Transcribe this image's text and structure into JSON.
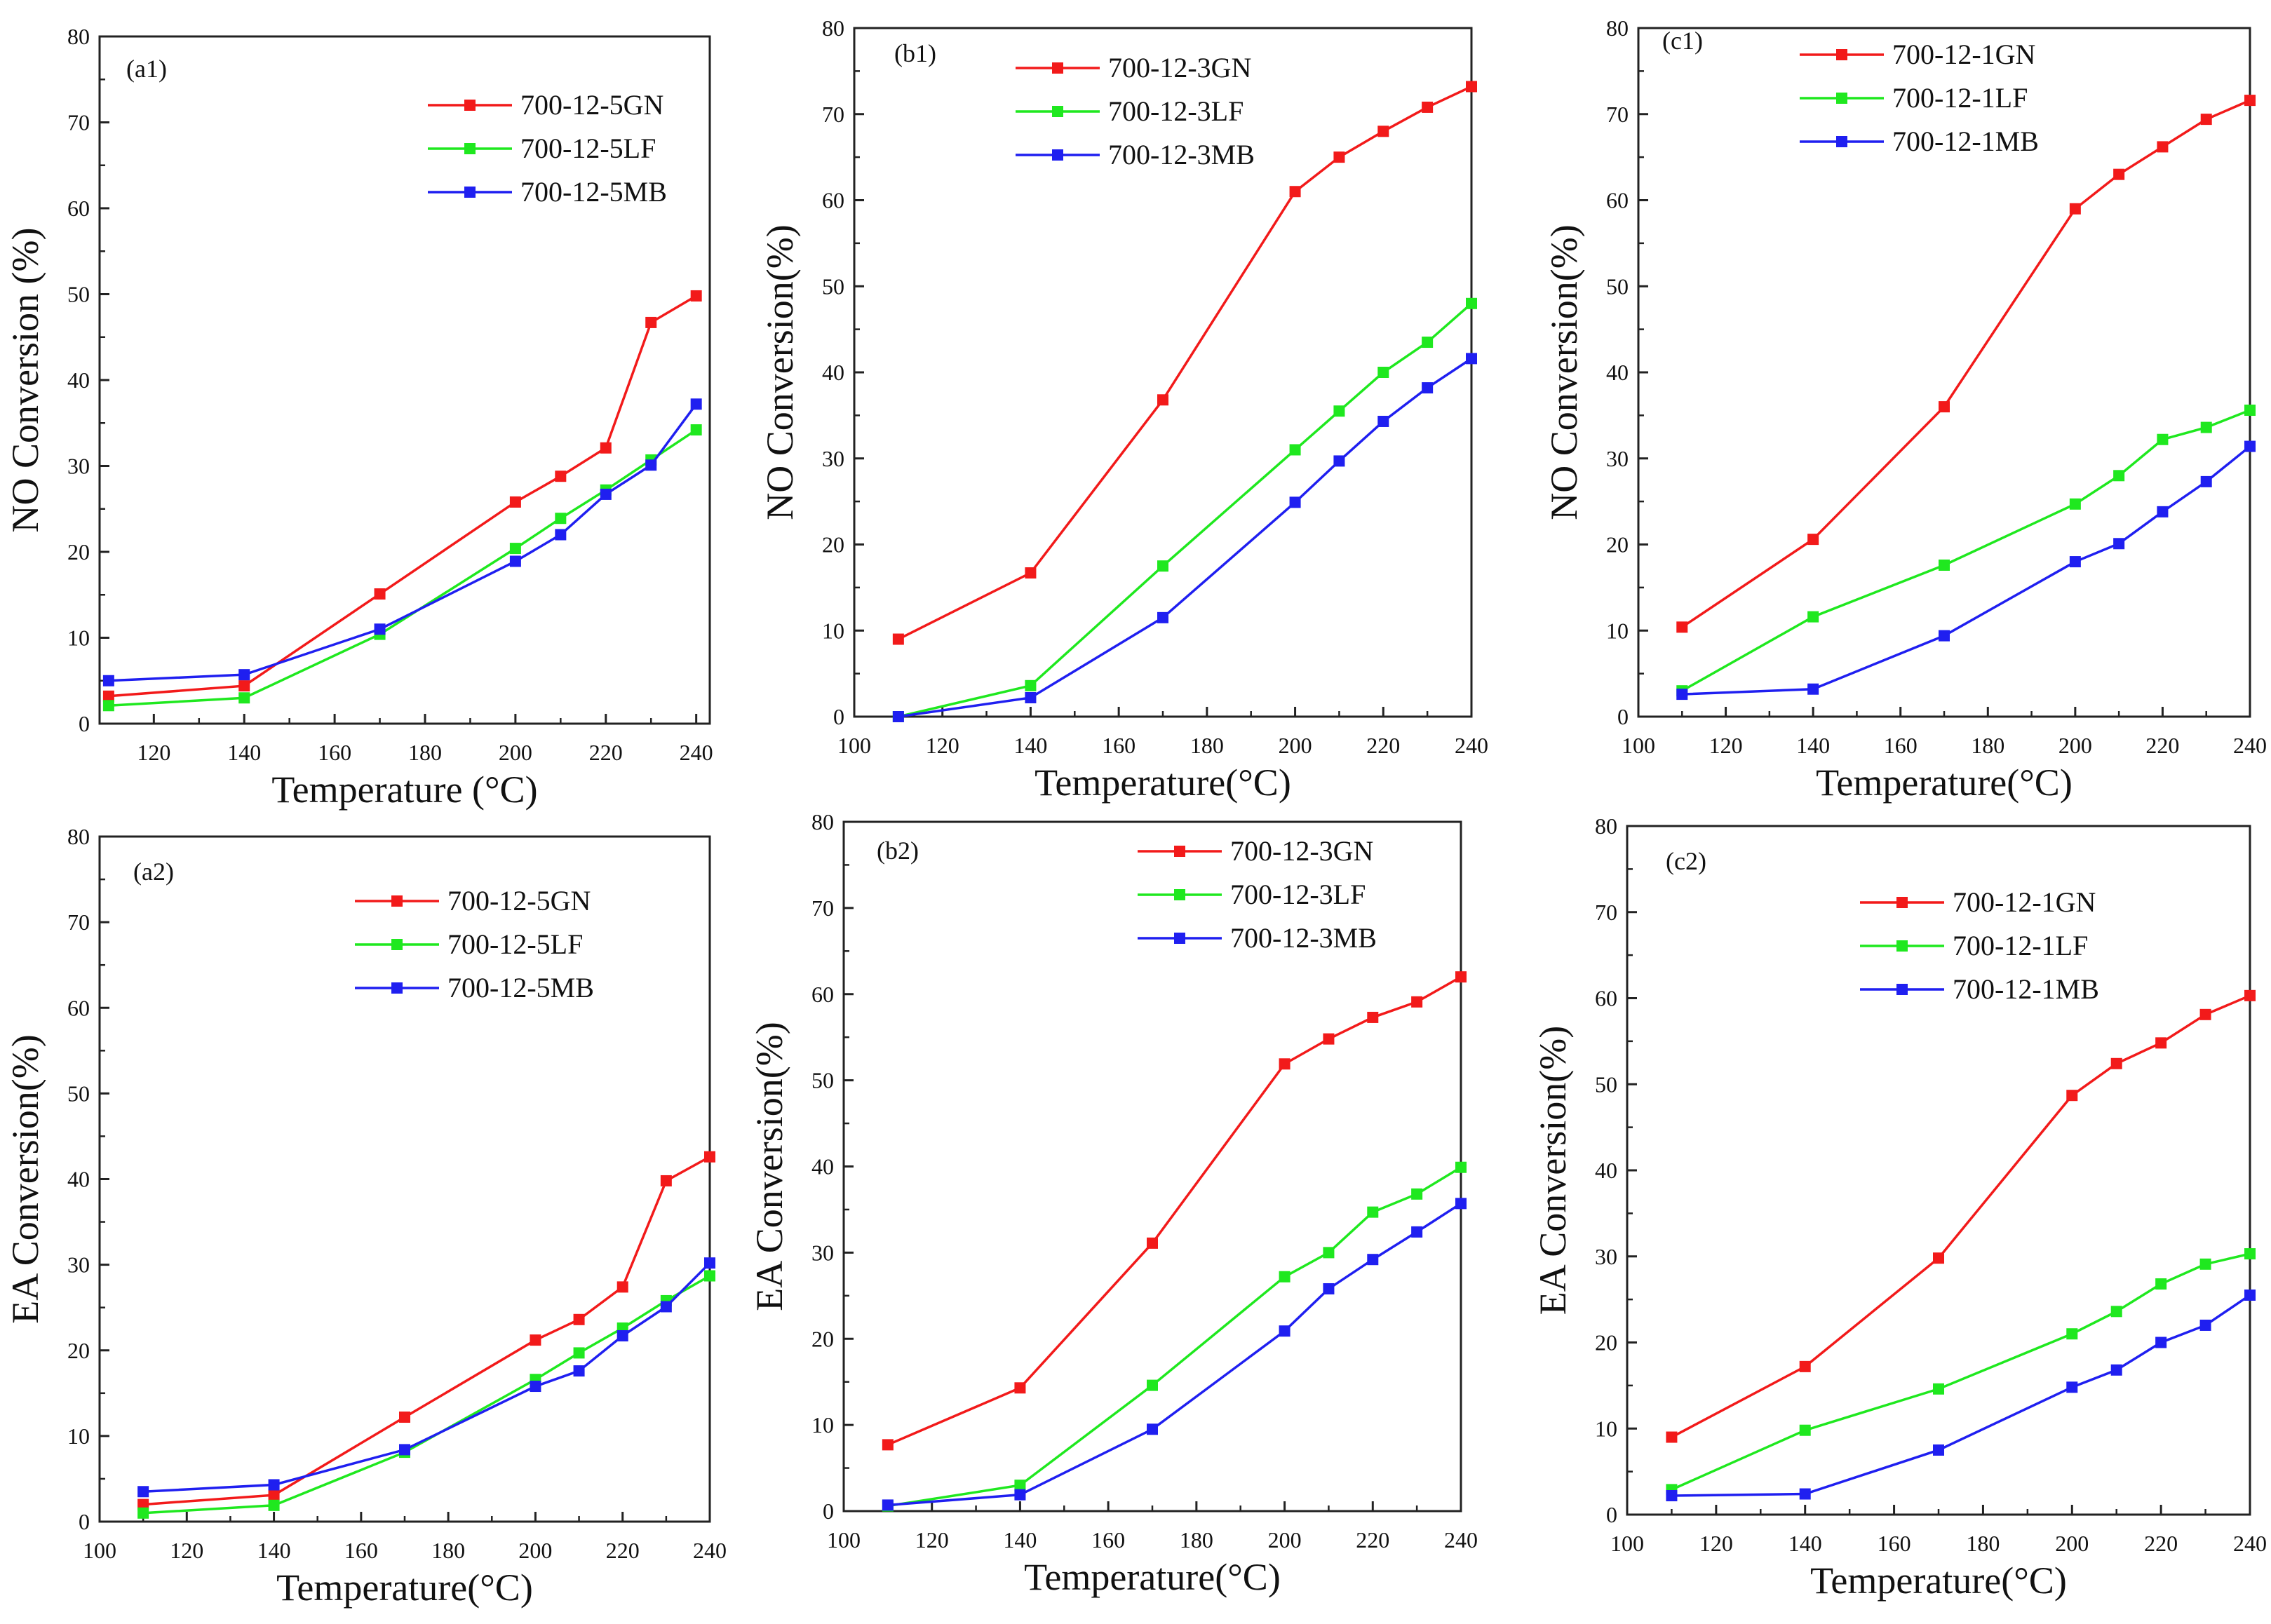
{
  "figure": {
    "series_colors": {
      "GN": "#f21a1a",
      "LF": "#1fe81f",
      "MB": "#1f1ff0"
    }
  },
  "chart_data": [
    {
      "id": "a1",
      "type": "line",
      "panel_label": "(a1)",
      "xlabel": "Temperature (°C)",
      "ylabel": "NO Conversion (%)",
      "xlim": [
        108,
        243
      ],
      "ylim": [
        0,
        80
      ],
      "xticks": [
        120,
        140,
        160,
        180,
        200,
        220,
        240
      ],
      "yticks": [
        0,
        10,
        20,
        30,
        40,
        50,
        60,
        70,
        80
      ],
      "x": [
        110,
        140,
        170,
        200,
        210,
        220,
        230,
        240
      ],
      "series": [
        {
          "name": "700-12-5GN",
          "key": "GN",
          "values": [
            3.2,
            4.4,
            15.1,
            25.8,
            28.8,
            32.1,
            46.7,
            49.8
          ]
        },
        {
          "name": "700-12-5LF",
          "key": "LF",
          "values": [
            2.1,
            3.0,
            10.4,
            20.4,
            23.9,
            27.2,
            30.7,
            34.2
          ]
        },
        {
          "name": "700-12-5MB",
          "key": "MB",
          "values": [
            5.0,
            5.7,
            11.0,
            18.9,
            22.0,
            26.7,
            30.1,
            37.2
          ]
        }
      ]
    },
    {
      "id": "b1",
      "type": "line",
      "panel_label": "(b1)",
      "xlabel": "Temperature(°C)",
      "ylabel": "NO Conversion(%)",
      "xlim": [
        100,
        240
      ],
      "ylim": [
        0,
        80
      ],
      "xticks": [
        100,
        120,
        140,
        160,
        180,
        200,
        220,
        240
      ],
      "yticks": [
        0,
        10,
        20,
        30,
        40,
        50,
        60,
        70,
        80
      ],
      "x": [
        110,
        140,
        170,
        200,
        210,
        220,
        230,
        240
      ],
      "series": [
        {
          "name": "700-12-3GN",
          "key": "GN",
          "values": [
            9.0,
            16.7,
            36.8,
            61.0,
            65.0,
            68.0,
            70.8,
            73.2
          ]
        },
        {
          "name": "700-12-3LF",
          "key": "LF",
          "values": [
            0.0,
            3.6,
            17.5,
            31.0,
            35.5,
            40.0,
            43.5,
            48.0
          ]
        },
        {
          "name": "700-12-3MB",
          "key": "MB",
          "values": [
            0.0,
            2.2,
            11.5,
            24.9,
            29.7,
            34.3,
            38.2,
            41.6
          ]
        }
      ]
    },
    {
      "id": "c1",
      "type": "line",
      "panel_label": "(c1)",
      "xlabel": "Temperature(°C)",
      "ylabel": "NO Conversion(%)",
      "xlim": [
        100,
        240
      ],
      "ylim": [
        0,
        80
      ],
      "xticks": [
        100,
        120,
        140,
        160,
        180,
        200,
        220,
        240
      ],
      "yticks": [
        0,
        10,
        20,
        30,
        40,
        50,
        60,
        70,
        80
      ],
      "x": [
        110,
        140,
        170,
        200,
        210,
        220,
        230,
        240
      ],
      "series": [
        {
          "name": "700-12-1GN",
          "key": "GN",
          "values": [
            10.4,
            20.6,
            36.0,
            59.0,
            63.0,
            66.2,
            69.4,
            71.6
          ]
        },
        {
          "name": "700-12-1LF",
          "key": "LF",
          "values": [
            3.0,
            11.6,
            17.6,
            24.7,
            28.0,
            32.2,
            33.6,
            35.6
          ]
        },
        {
          "name": "700-12-1MB",
          "key": "MB",
          "values": [
            2.6,
            3.2,
            9.4,
            18.0,
            20.1,
            23.8,
            27.3,
            31.4
          ]
        }
      ]
    },
    {
      "id": "a2",
      "type": "line",
      "panel_label": "(a2)",
      "xlabel": "Temperature(°C)",
      "ylabel": "EA Conversion(%)",
      "xlim": [
        100,
        240
      ],
      "ylim": [
        0,
        80
      ],
      "xticks": [
        100,
        120,
        140,
        160,
        180,
        200,
        220,
        240
      ],
      "yticks": [
        0,
        10,
        20,
        30,
        40,
        50,
        60,
        70,
        80
      ],
      "x": [
        110,
        140,
        170,
        200,
        210,
        220,
        230,
        240
      ],
      "series": [
        {
          "name": "700-12-5GN",
          "key": "GN",
          "values": [
            2.0,
            3.1,
            12.2,
            21.2,
            23.6,
            27.4,
            39.8,
            42.6
          ]
        },
        {
          "name": "700-12-5LF",
          "key": "LF",
          "values": [
            1.0,
            1.9,
            8.1,
            16.6,
            19.7,
            22.6,
            25.8,
            28.7
          ]
        },
        {
          "name": "700-12-5MB",
          "key": "MB",
          "values": [
            3.5,
            4.3,
            8.4,
            15.8,
            17.6,
            21.7,
            25.1,
            30.2
          ]
        }
      ]
    },
    {
      "id": "b2",
      "type": "line",
      "panel_label": "(b2)",
      "xlabel": "Temperature(°C)",
      "ylabel": "EA Conversion(%)",
      "xlim": [
        100,
        240
      ],
      "ylim": [
        0,
        80
      ],
      "xticks": [
        100,
        120,
        140,
        160,
        180,
        200,
        220,
        240
      ],
      "yticks": [
        0,
        10,
        20,
        30,
        40,
        50,
        60,
        70,
        80
      ],
      "x": [
        110,
        140,
        170,
        200,
        210,
        220,
        230,
        240
      ],
      "series": [
        {
          "name": "700-12-3GN",
          "key": "GN",
          "values": [
            7.7,
            14.3,
            31.1,
            51.9,
            54.8,
            57.3,
            59.1,
            62.0
          ]
        },
        {
          "name": "700-12-3LF",
          "key": "LF",
          "values": [
            0.6,
            3.0,
            14.6,
            27.2,
            30.0,
            34.7,
            36.8,
            39.9
          ]
        },
        {
          "name": "700-12-3MB",
          "key": "MB",
          "values": [
            0.7,
            1.9,
            9.5,
            20.9,
            25.8,
            29.2,
            32.4,
            35.7
          ]
        }
      ]
    },
    {
      "id": "c2",
      "type": "line",
      "panel_label": "(c2)",
      "xlabel": "Temperature(°C)",
      "ylabel": "EA Conversion(%)",
      "xlim": [
        100,
        240
      ],
      "ylim": [
        0,
        80
      ],
      "xticks": [
        100,
        120,
        140,
        160,
        180,
        200,
        220,
        240
      ],
      "yticks": [
        0,
        10,
        20,
        30,
        40,
        50,
        60,
        70,
        80
      ],
      "x": [
        110,
        140,
        170,
        200,
        210,
        220,
        230,
        240
      ],
      "series": [
        {
          "name": "700-12-1GN",
          "key": "GN",
          "values": [
            9.0,
            17.2,
            29.8,
            48.7,
            52.4,
            54.8,
            58.1,
            60.3
          ]
        },
        {
          "name": "700-12-1LF",
          "key": "LF",
          "values": [
            2.9,
            9.8,
            14.6,
            21.0,
            23.6,
            26.8,
            29.1,
            30.3
          ]
        },
        {
          "name": "700-12-1MB",
          "key": "MB",
          "values": [
            2.2,
            2.4,
            7.5,
            14.8,
            16.8,
            20.0,
            22.0,
            25.5
          ]
        }
      ]
    }
  ]
}
